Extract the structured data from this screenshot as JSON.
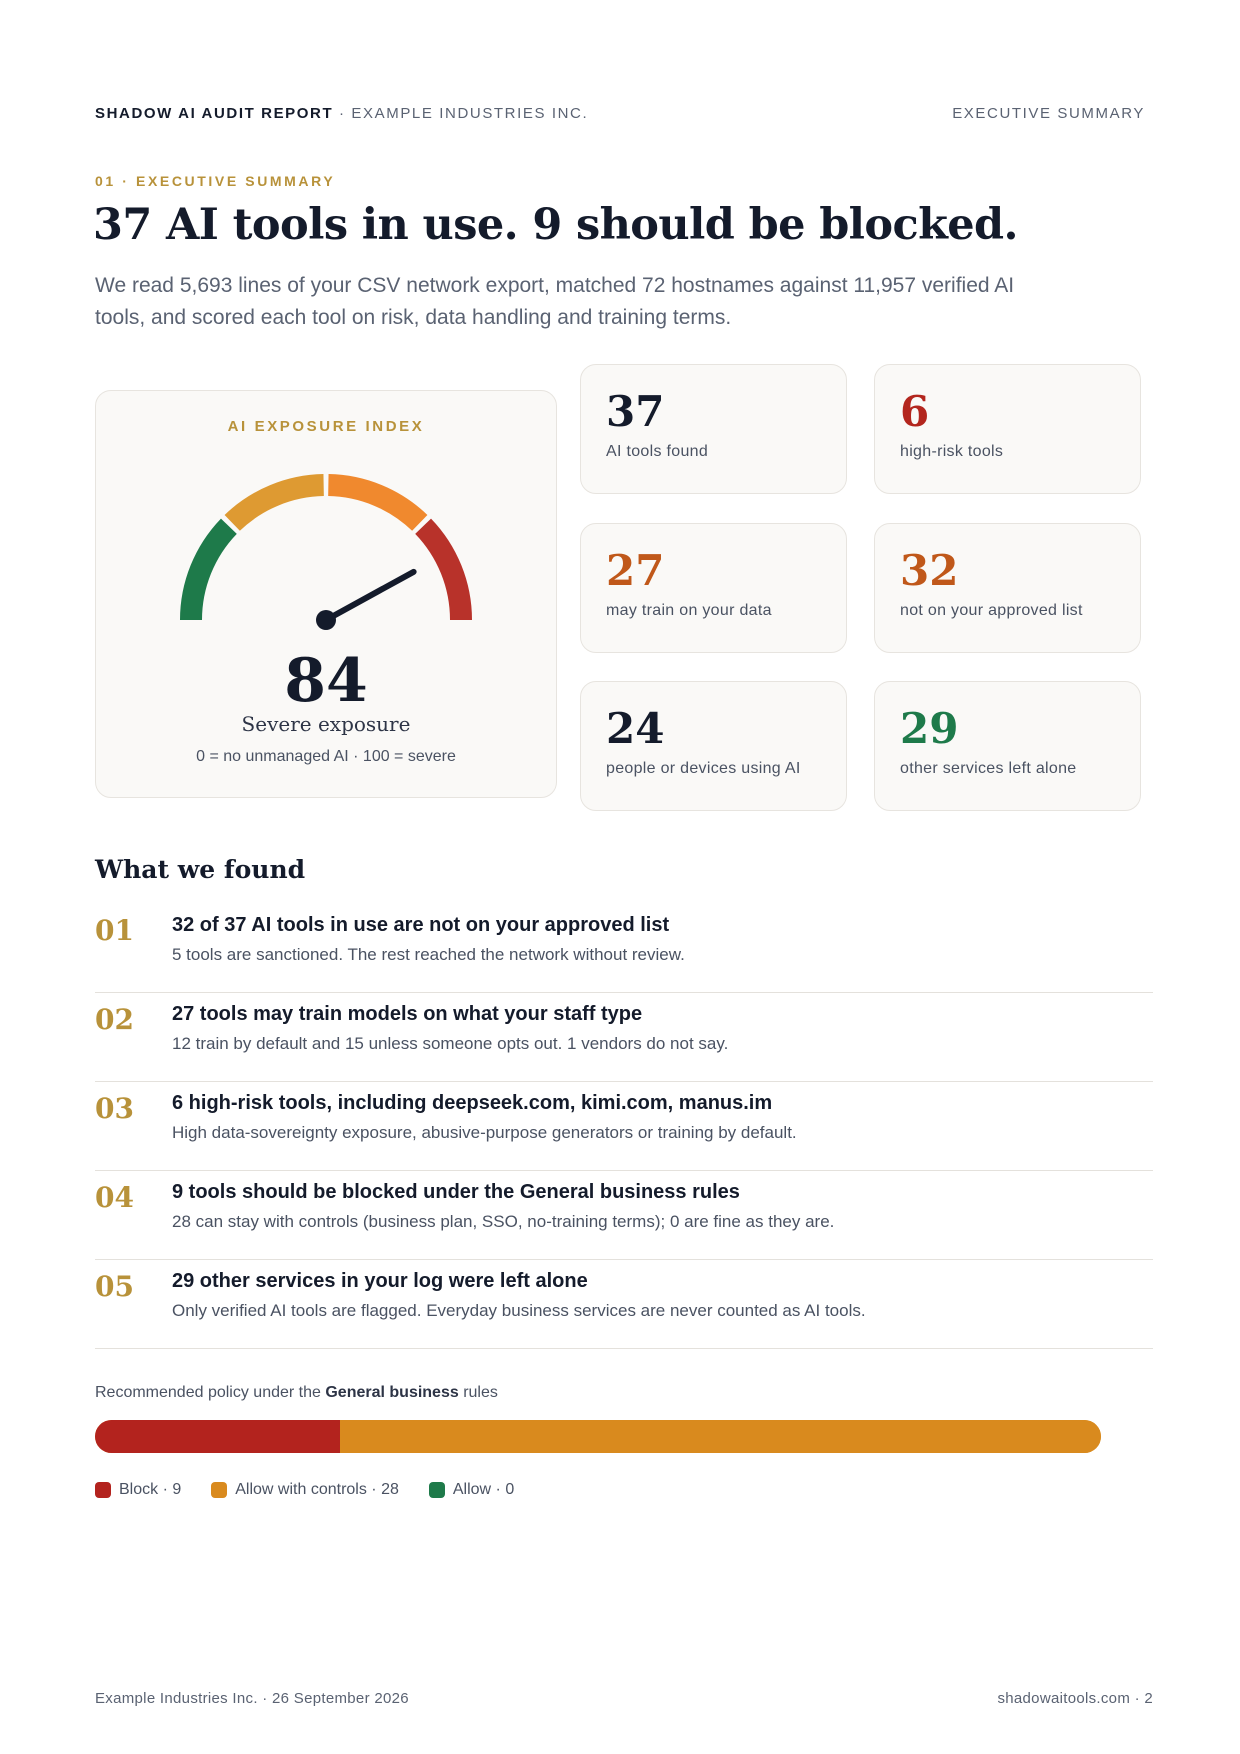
{
  "header": {
    "brand": "SHADOW AI AUDIT REPORT",
    "separator": "·",
    "org": "EXAMPLE INDUSTRIES INC.",
    "section": "EXECUTIVE SUMMARY"
  },
  "eyebrow": "01 · EXECUTIVE SUMMARY",
  "headline": "37 AI tools in use. 9 should be blocked.",
  "lede": "We read 5,693 lines of your CSV network export, matched 72 hostnames against 11,957 verified AI tools, and scored each tool on risk, data handling and training terms.",
  "gauge": {
    "title": "AI EXPOSURE INDEX",
    "score": "84",
    "score_value": 84,
    "scale_min": 0,
    "scale_max": 100,
    "label": "Severe exposure",
    "scale_text": "0 = no unmanaged AI · 100 = severe",
    "band_colors": [
      "#1e7a4a",
      "#de9a32",
      "#f0892e",
      "#b8322a"
    ]
  },
  "stats": [
    {
      "value": "37",
      "label": "AI tools found",
      "color": "#141b2b"
    },
    {
      "value": "6",
      "label": "high-risk tools",
      "color": "#b3261e"
    },
    {
      "value": "27",
      "label": "may train on your data",
      "color": "#c0581a"
    },
    {
      "value": "32",
      "label": "not on your approved list",
      "color": "#c0581a"
    },
    {
      "value": "24",
      "label": "people or devices using AI",
      "color": "#141b2b"
    },
    {
      "value": "29",
      "label": "other services left alone",
      "color": "#1e7a4a"
    }
  ],
  "found_title": "What we found",
  "findings": [
    {
      "num": "01",
      "title": "32 of 37 AI tools in use are not on your approved list",
      "desc": "5 tools are sanctioned. The rest reached the network without review."
    },
    {
      "num": "02",
      "title": "27 tools may train models on what your staff type",
      "desc": "12 train by default and 15 unless someone opts out. 1 vendors do not say."
    },
    {
      "num": "03",
      "title": "6 high-risk tools, including deepseek.com, kimi.com, manus.im",
      "desc": "High data-sovereignty exposure, abusive-purpose generators or training by default."
    },
    {
      "num": "04",
      "title": "9 tools should be blocked under the General business rules",
      "desc": "28 can stay with controls (business plan, SSO, no-training terms); 0 are fine as they are."
    },
    {
      "num": "05",
      "title": "29 other services in your log were left alone",
      "desc": "Only verified AI tools are flagged. Everyday business services are never counted as AI tools."
    }
  ],
  "policy": {
    "caption_pre": "Recommended policy under the",
    "caption_bold": "General business",
    "caption_post": "rules",
    "segments": [
      {
        "name": "Block",
        "count": 9,
        "label": "Block · 9",
        "color": "#b3231e"
      },
      {
        "name": "Allow with controls",
        "count": 28,
        "label": "Allow with controls · 28",
        "color": "#d98a1e"
      },
      {
        "name": "Allow",
        "count": 0,
        "label": "Allow · 0",
        "color": "#1e7a4a"
      }
    ]
  },
  "footer": {
    "left": "Example Industries Inc. · 26 September 2026",
    "right": "shadowaitools.com · 2"
  }
}
